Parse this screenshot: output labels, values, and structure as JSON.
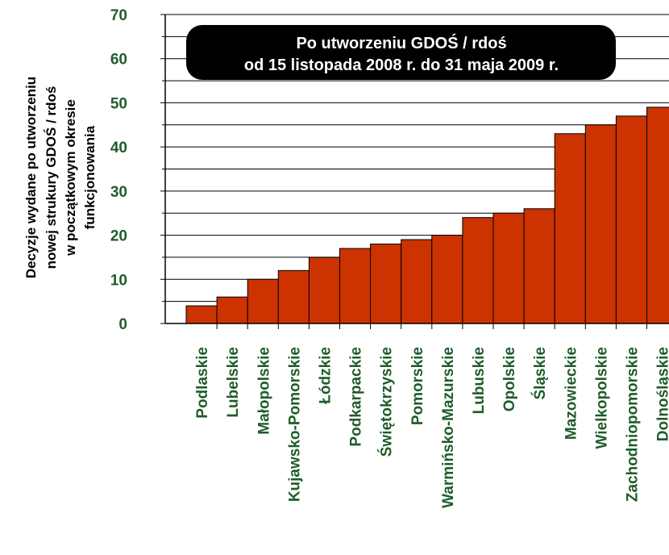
{
  "chart_data": {
    "type": "bar",
    "title_lines": [
      "Po utworzeniu GDOŚ / rdoś",
      "od 15 listopada 2008 r. do 31 maja 2009 r."
    ],
    "ylabel_lines": [
      "Decyzje wydane po utworzeniu",
      "nowej strukury GDOŚ / rdoś",
      "w początkowym okresie",
      "funkcjonowania"
    ],
    "xlabel": "",
    "categories": [
      "Podlaskie",
      "Lubelskie",
      "Małopolskie",
      "Kujawsko-Pomorskie",
      "Łódzkie",
      "Podkarpackie",
      "Świętokrzyskie",
      "Pomorskie",
      "Warmińsko-Mazurskie",
      "Lubuskie",
      "Opolskie",
      "Śląskie",
      "Mazowieckie",
      "Wielkopolskie",
      "Zachodniopomorskie",
      "Dolnośląskie"
    ],
    "values": [
      4,
      6,
      10,
      12,
      15,
      17,
      18,
      19,
      20,
      24,
      25,
      26,
      43,
      45,
      47,
      49
    ],
    "ylim": [
      0,
      70
    ],
    "yticks": [
      0,
      10,
      20,
      30,
      40,
      50,
      60,
      70
    ],
    "grid": true,
    "bar_color": "#cc3300",
    "label_color": "#1f5c2a",
    "banner_color": "#000000"
  }
}
